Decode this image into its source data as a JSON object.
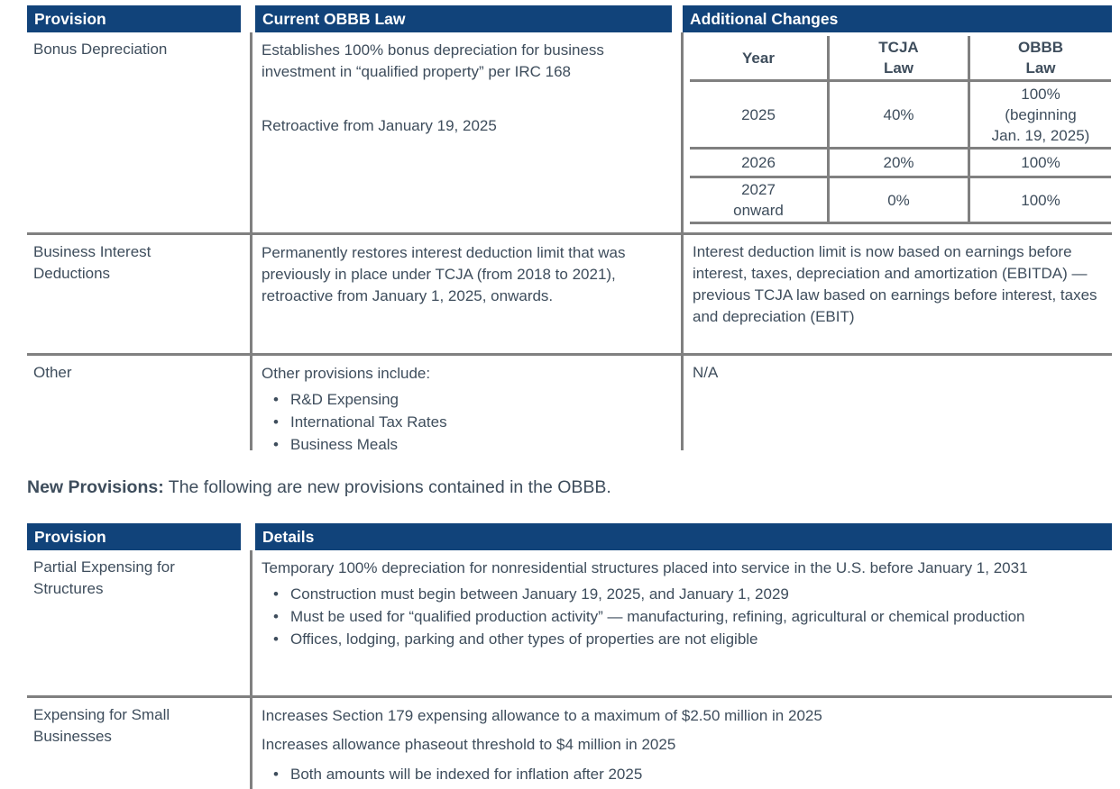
{
  "colors": {
    "header_background": "#11437A",
    "header_text": "#FFFFFF",
    "body_text": "#3E4D5C",
    "table_border": "#808080"
  },
  "comparison_table": {
    "headers": {
      "provision": "Provision",
      "current_law": "Current OBBB Law",
      "additional_changes": "Additional Changes"
    },
    "rows": {
      "bonus_depreciation": {
        "provision": "Bonus Depreciation",
        "current_law_p1": "Establishes 100% bonus depreciation for business investment in “qualified property” per IRC 168",
        "current_law_p2": "Retroactive from January 19, 2025",
        "schedule": {
          "col_year": "Year",
          "col_tcja": "TCJA\nLaw",
          "col_obbb": "OBBB\nLaw",
          "r1": {
            "year": "2025",
            "tcja": "40%",
            "obbb": "100%\n(beginning\nJan. 19, 2025)"
          },
          "r2": {
            "year": "2026",
            "tcja": "20%",
            "obbb": "100%"
          },
          "r3": {
            "year": "2027\nonward",
            "tcja": "0%",
            "obbb": "100%"
          }
        }
      },
      "business_interest": {
        "provision": "Business Interest\nDeductions",
        "current_law": "Permanently restores interest deduction limit that was previously in place under TCJA (from 2018 to 2021), retroactive from January 1, 2025, onwards.",
        "additional_changes": "Interest deduction limit is now based on earnings before interest, taxes, depreciation and amortization (EBITDA) — previous TCJA law based on earnings before interest, taxes and depreciation (EBIT)"
      },
      "other": {
        "provision": "Other",
        "current_law_intro": "Other provisions include:",
        "bullets": [
          "R&D Expensing",
          "International Tax Rates",
          "Business Meals"
        ],
        "additional_changes": "N/A"
      }
    }
  },
  "new_provisions_note": {
    "label": "New Provisions:",
    "text": " The following are new provisions contained in the OBBB."
  },
  "new_provisions_table": {
    "headers": {
      "provision": "Provision",
      "details": "Details"
    },
    "rows": {
      "partial_expensing": {
        "provision": "Partial Expensing for\nStructures",
        "details_intro": "Temporary 100% depreciation for nonresidential structures placed into service in the U.S. before January 1, 2031",
        "bullets": [
          "Construction must begin between January 19, 2025, and January 1, 2029",
          "Must be used for “qualified production activity” — manufacturing, refining, agricultural or chemical production",
          "Offices, lodging, parking and other types of properties are not eligible"
        ]
      },
      "small_business_expensing": {
        "provision": "Expensing for Small\nBusinesses",
        "details_p1": "Increases Section 179 expensing allowance to a maximum of $2.50 million in 2025",
        "details_p2": "Increases allowance phaseout threshold to $4 million in 2025",
        "bullets": [
          "Both amounts will be indexed for inflation after 2025"
        ]
      }
    }
  }
}
